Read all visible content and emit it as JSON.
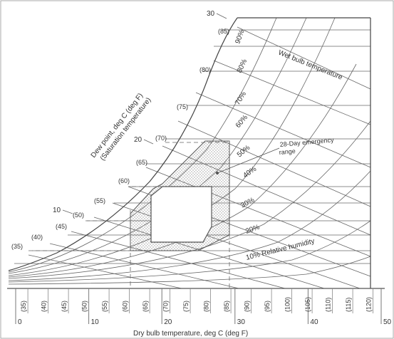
{
  "labels": {
    "wet_bulb": "Wet bulb temperature",
    "dew_point_1": "Dew point, deg C (deg F)",
    "dew_point_2": "(Saturation temperature)",
    "emergency_1": "28-Day emergency",
    "emergency_2": "range",
    "relative_humidity": "10% Relative humidity",
    "x_axis": "Dry bulb temperature, deg C (deg F)"
  },
  "rh_labels": [
    "90%",
    "80%",
    "70%",
    "60%",
    "50%",
    "40%",
    "30%",
    "20%"
  ],
  "x_celsius_ticks": [
    "0",
    "10",
    "20",
    "30",
    "40",
    "50"
  ],
  "x_fahrenheit_ticks": [
    "(35)",
    "(40)",
    "(45)",
    "(50)",
    "(55)",
    "(60)",
    "(65)",
    "(70)",
    "(75)",
    "(80)",
    "(85)",
    "(90)",
    "(95)",
    "(100)",
    "(105)",
    "(110)",
    "(115)",
    "(120)"
  ],
  "dew_celsius_labels": [
    "10",
    "20",
    "30"
  ],
  "dew_fahrenheit_labels": [
    "(35)",
    "(40)",
    "(45)",
    "(50)",
    "(55)",
    "(60)",
    "(65)",
    "(70)",
    "(75)",
    "(80)",
    "(85)"
  ]
}
